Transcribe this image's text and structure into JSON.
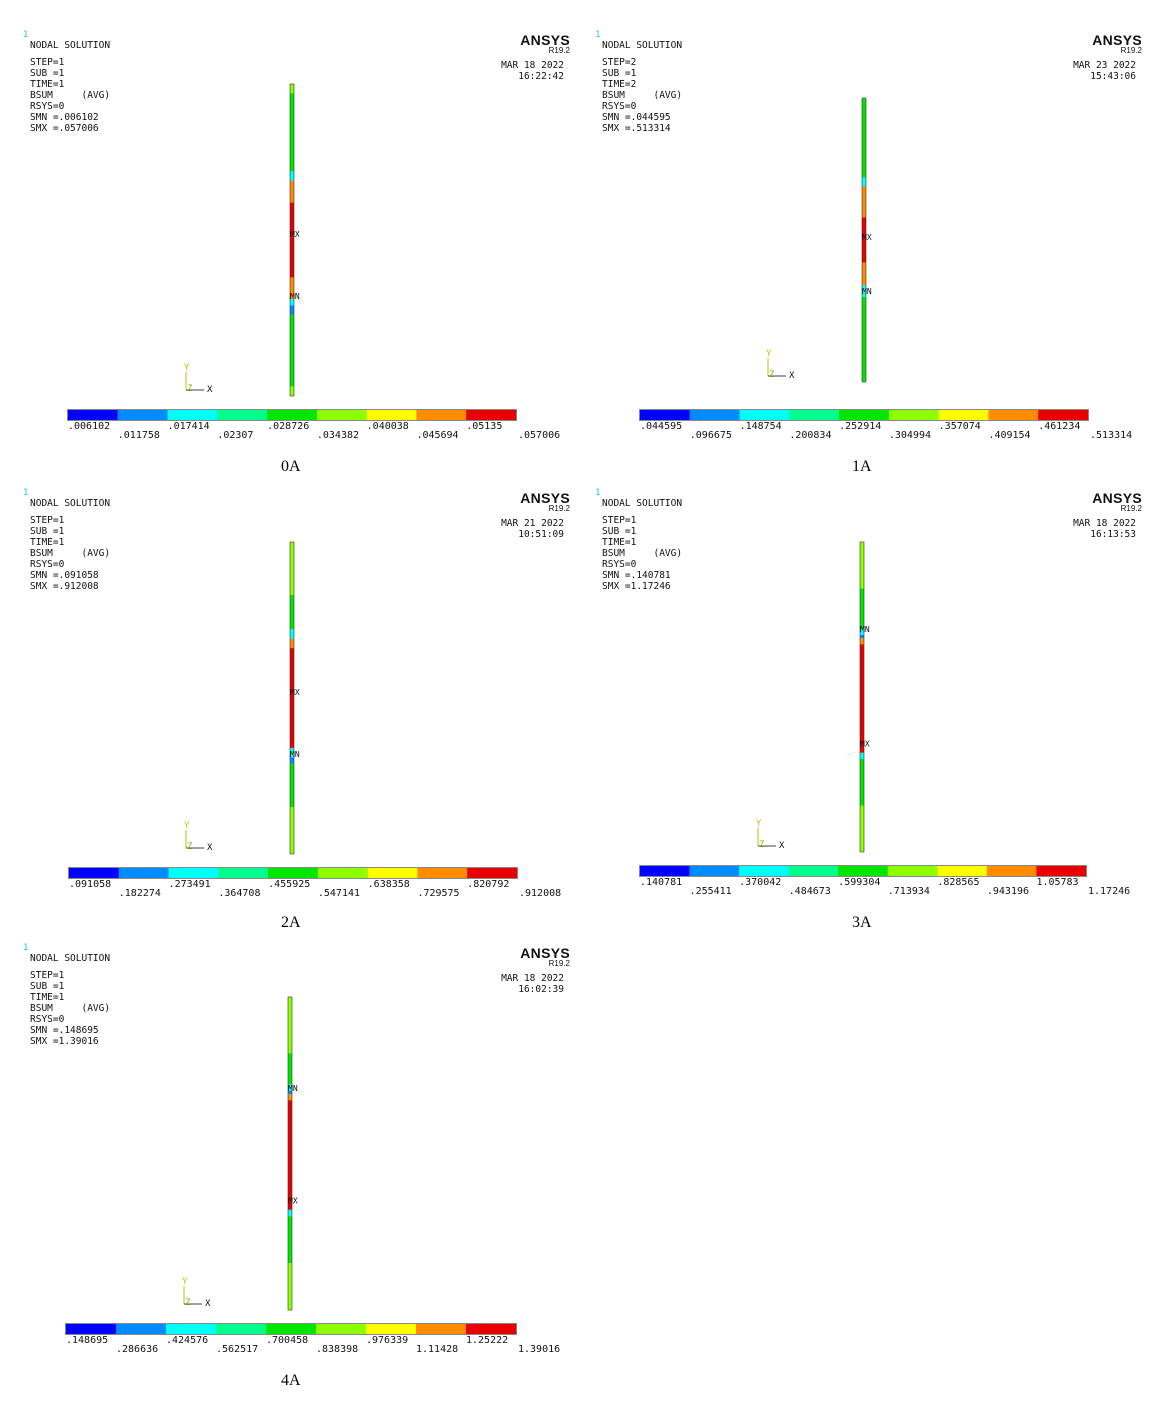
{
  "legend_colors": [
    "#0000ff",
    "#008cff",
    "#00ffff",
    "#00ff8c",
    "#00e600",
    "#8cff00",
    "#ffff00",
    "#ff8c00",
    "#e60000"
  ],
  "chart_data": [
    {
      "type": "contour-plot",
      "caption": "0A",
      "corner_mark": "1",
      "title": "NODAL SOLUTION",
      "info": [
        "STEP=1",
        "SUB =1",
        "TIME=1",
        "BSUM     (AVG)",
        "RSYS=0",
        "SMN =.006102",
        "SMX =.057006"
      ],
      "brand": "ANSYS",
      "version": "R19.2",
      "date": "MAR 18 2022",
      "time": "16:22:42",
      "mx_label": "MX",
      "mn_label": "MN",
      "axis": {
        "y": "Y",
        "z": "Z",
        "x": "X"
      },
      "legend_values": [
        ".006102",
        ".011758",
        ".017414",
        ".02307",
        ".028726",
        ".034382",
        ".040038",
        ".045694",
        ".05135",
        ".057006"
      ],
      "column_bands": [
        {
          "from": 0.0,
          "to": 0.03,
          "color": "#8cff00"
        },
        {
          "from": 0.03,
          "to": 0.28,
          "color": "#00e600"
        },
        {
          "from": 0.28,
          "to": 0.31,
          "color": "#00ffff"
        },
        {
          "from": 0.31,
          "to": 0.38,
          "color": "#ff8c00"
        },
        {
          "from": 0.38,
          "to": 0.62,
          "color": "#e60000"
        },
        {
          "from": 0.62,
          "to": 0.69,
          "color": "#ff8c00"
        },
        {
          "from": 0.69,
          "to": 0.71,
          "color": "#00ffff"
        },
        {
          "from": 0.71,
          "to": 0.74,
          "color": "#008cff"
        },
        {
          "from": 0.74,
          "to": 0.97,
          "color": "#00e600"
        },
        {
          "from": 0.97,
          "to": 1.0,
          "color": "#8cff00"
        }
      ],
      "mx_pos": 0.48,
      "mn_pos": 0.68
    },
    {
      "type": "contour-plot",
      "caption": "1A",
      "corner_mark": "1",
      "title": "NODAL SOLUTION",
      "info": [
        "STEP=2",
        "SUB =1",
        "TIME=2",
        "BSUM     (AVG)",
        "RSYS=0",
        "SMN =.044595",
        "SMX =.513314"
      ],
      "brand": "ANSYS",
      "version": "R19.2",
      "date": "MAR 23 2022",
      "time": "15:43:06",
      "mx_label": "MX",
      "mn_label": "MN",
      "axis": {
        "y": "Y",
        "z": "Z",
        "x": "X"
      },
      "legend_values": [
        ".044595",
        ".096675",
        ".148754",
        ".200834",
        ".252914",
        ".304994",
        ".357074",
        ".409154",
        ".461234",
        ".513314"
      ],
      "column_bands": [
        {
          "from": 0.0,
          "to": 0.28,
          "color": "#00e600"
        },
        {
          "from": 0.28,
          "to": 0.31,
          "color": "#00ffff"
        },
        {
          "from": 0.31,
          "to": 0.42,
          "color": "#ff8c00"
        },
        {
          "from": 0.42,
          "to": 0.58,
          "color": "#e60000"
        },
        {
          "from": 0.58,
          "to": 0.66,
          "color": "#ff8c00"
        },
        {
          "from": 0.66,
          "to": 0.7,
          "color": "#00ffff"
        },
        {
          "from": 0.7,
          "to": 1.0,
          "color": "#00e600"
        }
      ],
      "mx_pos": 0.49,
      "mn_pos": 0.68
    },
    {
      "type": "contour-plot",
      "caption": "2A",
      "corner_mark": "1",
      "title": "NODAL SOLUTION",
      "info": [
        "STEP=1",
        "SUB =1",
        "TIME=1",
        "BSUM     (AVG)",
        "RSYS=0",
        "SMN =.091058",
        "SMX =.912008"
      ],
      "brand": "ANSYS",
      "version": "R19.2",
      "date": "MAR 21 2022",
      "time": "10:51:09",
      "mx_label": "MX",
      "mn_label": "MN",
      "axis": {
        "y": "Y",
        "z": "Z",
        "x": "X"
      },
      "legend_values": [
        ".091058",
        ".182274",
        ".273491",
        ".364708",
        ".455925",
        ".547141",
        ".638358",
        ".729575",
        ".820792",
        ".912008"
      ],
      "column_bands": [
        {
          "from": 0.0,
          "to": 0.17,
          "color": "#8cff00"
        },
        {
          "from": 0.17,
          "to": 0.28,
          "color": "#00e600"
        },
        {
          "from": 0.28,
          "to": 0.31,
          "color": "#00ffff"
        },
        {
          "from": 0.31,
          "to": 0.34,
          "color": "#ff8c00"
        },
        {
          "from": 0.34,
          "to": 0.66,
          "color": "#e60000"
        },
        {
          "from": 0.66,
          "to": 0.69,
          "color": "#00ffff"
        },
        {
          "from": 0.69,
          "to": 0.71,
          "color": "#008cff"
        },
        {
          "from": 0.71,
          "to": 0.85,
          "color": "#00e600"
        },
        {
          "from": 0.85,
          "to": 1.0,
          "color": "#8cff00"
        }
      ],
      "mx_pos": 0.48,
      "mn_pos": 0.68
    },
    {
      "type": "contour-plot",
      "caption": "3A",
      "corner_mark": "1",
      "title": "NODAL SOLUTION",
      "info": [
        "STEP=1",
        "SUB =1",
        "TIME=1",
        "BSUM     (AVG)",
        "RSYS=0",
        "SMN =.140781",
        "SMX =1.17246"
      ],
      "brand": "ANSYS",
      "version": "R19.2",
      "date": "MAR 18 2022",
      "time": "16:13:53",
      "mx_label": "MX",
      "mn_label": "MN",
      "axis": {
        "y": "Y",
        "z": "Z",
        "x": "X"
      },
      "legend_values": [
        ".140781",
        ".255411",
        ".370042",
        ".484673",
        ".599304",
        ".713934",
        ".828565",
        ".943196",
        "1.05783",
        "1.17246"
      ],
      "column_bands": [
        {
          "from": 0.0,
          "to": 0.15,
          "color": "#8cff00"
        },
        {
          "from": 0.15,
          "to": 0.28,
          "color": "#00e600"
        },
        {
          "from": 0.28,
          "to": 0.3,
          "color": "#00ffff"
        },
        {
          "from": 0.3,
          "to": 0.31,
          "color": "#008cff"
        },
        {
          "from": 0.31,
          "to": 0.33,
          "color": "#ff8c00"
        },
        {
          "from": 0.33,
          "to": 0.68,
          "color": "#e60000"
        },
        {
          "from": 0.68,
          "to": 0.7,
          "color": "#00ffff"
        },
        {
          "from": 0.7,
          "to": 0.85,
          "color": "#00e600"
        },
        {
          "from": 0.85,
          "to": 1.0,
          "color": "#8cff00"
        }
      ],
      "mx_pos": 0.65,
      "mn_pos": 0.28
    },
    {
      "type": "contour-plot",
      "caption": "4A",
      "corner_mark": "1",
      "title": "NODAL SOLUTION",
      "info": [
        "STEP=1",
        "SUB =1",
        "TIME=1",
        "BSUM     (AVG)",
        "RSYS=0",
        "SMN =.148695",
        "SMX =1.39016"
      ],
      "brand": "ANSYS",
      "version": "R19.2",
      "date": "MAR 18 2022",
      "time": "16:02:39",
      "mx_label": "MX",
      "mn_label": "MN",
      "axis": {
        "y": "Y",
        "z": "Z",
        "x": "X"
      },
      "legend_values": [
        ".148695",
        ".286636",
        ".424576",
        ".562517",
        ".700458",
        ".838398",
        ".976339",
        "1.11428",
        "1.25222",
        "1.39016"
      ],
      "column_bands": [
        {
          "from": 0.0,
          "to": 0.18,
          "color": "#8cff00"
        },
        {
          "from": 0.18,
          "to": 0.28,
          "color": "#00e600"
        },
        {
          "from": 0.28,
          "to": 0.3,
          "color": "#00ffff"
        },
        {
          "from": 0.3,
          "to": 0.31,
          "color": "#008cff"
        },
        {
          "from": 0.31,
          "to": 0.33,
          "color": "#ff8c00"
        },
        {
          "from": 0.33,
          "to": 0.68,
          "color": "#e60000"
        },
        {
          "from": 0.68,
          "to": 0.7,
          "color": "#00ffff"
        },
        {
          "from": 0.7,
          "to": 0.85,
          "color": "#00e600"
        },
        {
          "from": 0.85,
          "to": 1.0,
          "color": "#8cff00"
        }
      ],
      "mx_pos": 0.65,
      "mn_pos": 0.29
    }
  ]
}
